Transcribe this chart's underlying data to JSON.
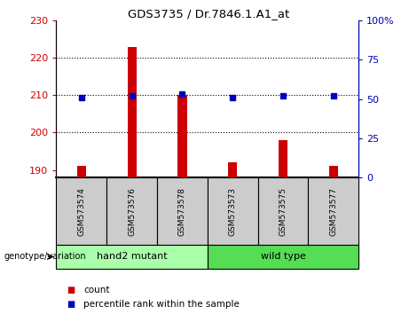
{
  "title": "GDS3735 / Dr.7846.1.A1_at",
  "samples": [
    "GSM573574",
    "GSM573576",
    "GSM573578",
    "GSM573573",
    "GSM573575",
    "GSM573577"
  ],
  "counts": [
    191,
    223,
    210,
    192,
    198,
    191
  ],
  "percentile_ranks": [
    51,
    52,
    53,
    51,
    52,
    52
  ],
  "ylim_left": [
    188,
    230
  ],
  "ylim_right": [
    0,
    100
  ],
  "yticks_left": [
    190,
    200,
    210,
    220,
    230
  ],
  "yticks_right": [
    0,
    25,
    50,
    75,
    100
  ],
  "ytick_labels_right": [
    "0",
    "25",
    "50",
    "75",
    "100%"
  ],
  "bar_color": "#CC0000",
  "dot_color": "#0000BB",
  "left_tick_color": "#CC0000",
  "right_tick_color": "#0000BB",
  "legend_count_label": "count",
  "legend_pct_label": "percentile rank within the sample",
  "genotype_label": "genotype/variation",
  "group1_label": "hand2 mutant",
  "group2_label": "wild type",
  "group1_color": "#AAFFAA",
  "group2_color": "#55DD55",
  "sample_box_color": "#CCCCCC",
  "bar_width": 0.18,
  "dot_size": 5
}
